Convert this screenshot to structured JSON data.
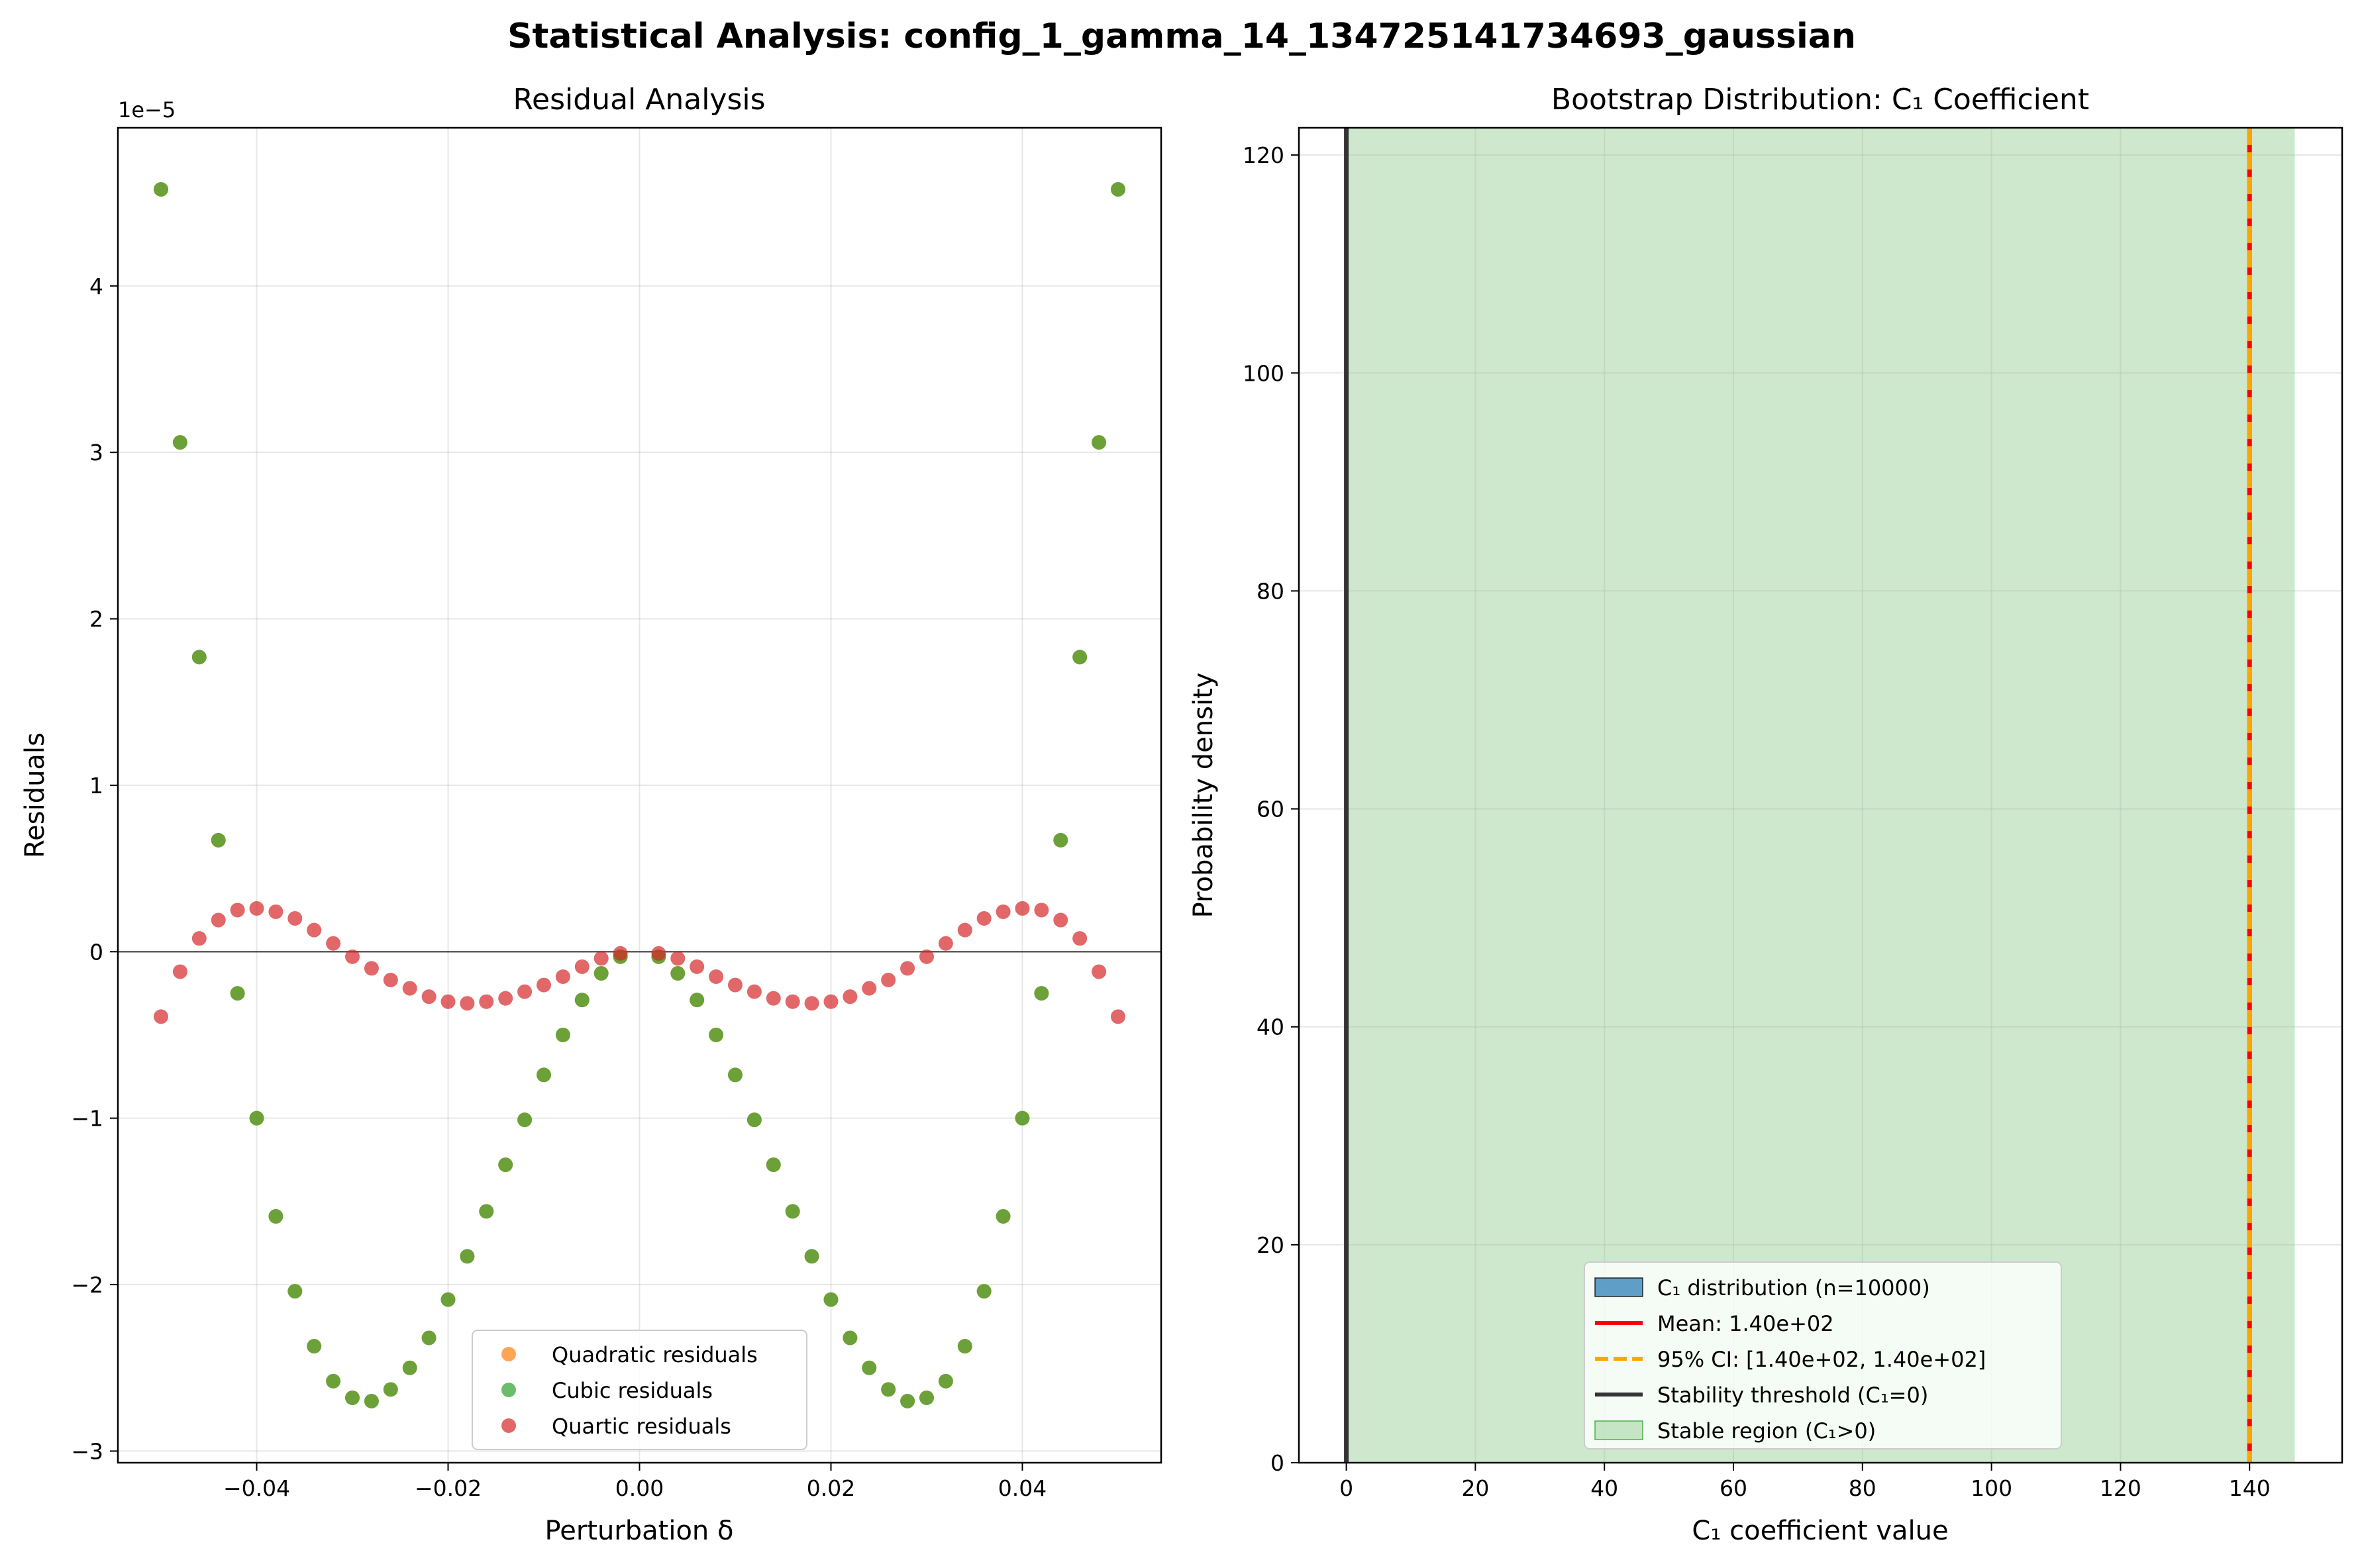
{
  "suptitle": "Statistical Analysis: config_1_gamma_14_134725141734693_gaussian",
  "chart_data": [
    {
      "type": "scatter",
      "title": "Residual Analysis",
      "xlabel": "Perturbation δ",
      "ylabel": "Residuals",
      "y_offset_label": "1e−5",
      "y_scale": 1e-05,
      "xlim": [
        -0.0545,
        0.0545
      ],
      "ylim": [
        -3.07,
        4.95
      ],
      "xticks": [
        -0.04,
        -0.02,
        0.0,
        0.02,
        0.04
      ],
      "xtick_labels": [
        "−0.04",
        "−0.02",
        "0.00",
        "0.02",
        "0.04"
      ],
      "yticks": [
        -3,
        -2,
        -1,
        0,
        1,
        2,
        3,
        4
      ],
      "ytick_labels": [
        "−3",
        "−2",
        "−1",
        "0",
        "1",
        "2",
        "3",
        "4"
      ],
      "grid": true,
      "zero_line": true,
      "legend_position": "lower center",
      "series": [
        {
          "name": "Quadratic residuals",
          "color": "#ff7f0e",
          "x": [
            -0.05,
            -0.048,
            -0.046,
            -0.044,
            -0.042,
            -0.04,
            -0.038,
            -0.036,
            -0.034,
            -0.032,
            -0.03,
            -0.028,
            -0.026,
            -0.024,
            -0.022,
            -0.02,
            -0.018,
            -0.016,
            -0.014,
            -0.012,
            -0.01,
            -0.008,
            -0.006,
            -0.004,
            -0.002,
            0.002,
            0.004,
            0.006,
            0.008,
            0.01,
            0.012,
            0.014,
            0.016,
            0.018,
            0.02,
            0.022,
            0.024,
            0.026,
            0.028,
            0.03,
            0.032,
            0.034,
            0.036,
            0.038,
            0.04,
            0.042,
            0.044,
            0.046,
            0.048,
            0.05
          ],
          "y": [
            4.58,
            3.06,
            1.77,
            0.67,
            -0.25,
            -1.0,
            -1.59,
            -2.04,
            -2.37,
            -2.58,
            -2.68,
            -2.7,
            -2.63,
            -2.5,
            -2.32,
            -2.09,
            -1.83,
            -1.56,
            -1.28,
            -1.01,
            -0.74,
            -0.5,
            -0.29,
            -0.13,
            -0.03,
            -0.03,
            -0.13,
            -0.29,
            -0.5,
            -0.74,
            -1.01,
            -1.28,
            -1.56,
            -1.83,
            -2.09,
            -2.32,
            -2.5,
            -2.63,
            -2.7,
            -2.68,
            -2.58,
            -2.37,
            -2.04,
            -1.59,
            -1.0,
            -0.25,
            0.67,
            1.77,
            3.06,
            4.58
          ]
        },
        {
          "name": "Cubic residuals",
          "color": "#2ca02c",
          "x": [
            -0.05,
            -0.048,
            -0.046,
            -0.044,
            -0.042,
            -0.04,
            -0.038,
            -0.036,
            -0.034,
            -0.032,
            -0.03,
            -0.028,
            -0.026,
            -0.024,
            -0.022,
            -0.02,
            -0.018,
            -0.016,
            -0.014,
            -0.012,
            -0.01,
            -0.008,
            -0.006,
            -0.004,
            -0.002,
            0.002,
            0.004,
            0.006,
            0.008,
            0.01,
            0.012,
            0.014,
            0.016,
            0.018,
            0.02,
            0.022,
            0.024,
            0.026,
            0.028,
            0.03,
            0.032,
            0.034,
            0.036,
            0.038,
            0.04,
            0.042,
            0.044,
            0.046,
            0.048,
            0.05
          ],
          "y": [
            4.58,
            3.06,
            1.77,
            0.67,
            -0.25,
            -1.0,
            -1.59,
            -2.04,
            -2.37,
            -2.58,
            -2.68,
            -2.7,
            -2.63,
            -2.5,
            -2.32,
            -2.09,
            -1.83,
            -1.56,
            -1.28,
            -1.01,
            -0.74,
            -0.5,
            -0.29,
            -0.13,
            -0.03,
            -0.03,
            -0.13,
            -0.29,
            -0.5,
            -0.74,
            -1.01,
            -1.28,
            -1.56,
            -1.83,
            -2.09,
            -2.32,
            -2.5,
            -2.63,
            -2.7,
            -2.68,
            -2.58,
            -2.37,
            -2.04,
            -1.59,
            -1.0,
            -0.25,
            0.67,
            1.77,
            3.06,
            4.58
          ]
        },
        {
          "name": "Quartic residuals",
          "color": "#d62728",
          "x": [
            -0.05,
            -0.048,
            -0.046,
            -0.044,
            -0.042,
            -0.04,
            -0.038,
            -0.036,
            -0.034,
            -0.032,
            -0.03,
            -0.028,
            -0.026,
            -0.024,
            -0.022,
            -0.02,
            -0.018,
            -0.016,
            -0.014,
            -0.012,
            -0.01,
            -0.008,
            -0.006,
            -0.004,
            -0.002,
            0.002,
            0.004,
            0.006,
            0.008,
            0.01,
            0.012,
            0.014,
            0.016,
            0.018,
            0.02,
            0.022,
            0.024,
            0.026,
            0.028,
            0.03,
            0.032,
            0.034,
            0.036,
            0.038,
            0.04,
            0.042,
            0.044,
            0.046,
            0.048,
            0.05
          ],
          "y": [
            -0.39,
            -0.12,
            0.08,
            0.19,
            0.25,
            0.26,
            0.24,
            0.2,
            0.13,
            0.05,
            -0.03,
            -0.1,
            -0.17,
            -0.22,
            -0.27,
            -0.3,
            -0.31,
            -0.3,
            -0.28,
            -0.24,
            -0.2,
            -0.15,
            -0.09,
            -0.04,
            -0.01,
            -0.01,
            -0.04,
            -0.09,
            -0.15,
            -0.2,
            -0.24,
            -0.28,
            -0.3,
            -0.31,
            -0.3,
            -0.27,
            -0.22,
            -0.17,
            -0.1,
            -0.03,
            0.05,
            0.13,
            0.2,
            0.24,
            0.26,
            0.25,
            0.19,
            0.08,
            -0.12,
            -0.39
          ]
        }
      ]
    },
    {
      "type": "bar",
      "title": "Bootstrap Distribution: C₁ Coefficient",
      "xlabel": "C₁ coefficient value",
      "ylabel": "Probability density",
      "xlim": [
        -7.35,
        154.35
      ],
      "ylim": [
        0,
        122.5
      ],
      "xticks": [
        0,
        20,
        40,
        60,
        80,
        100,
        120,
        140
      ],
      "xtick_labels": [
        "0",
        "20",
        "40",
        "60",
        "80",
        "100",
        "120",
        "140"
      ],
      "yticks": [
        0,
        20,
        40,
        60,
        80,
        100,
        120
      ],
      "ytick_labels": [
        "0",
        "20",
        "40",
        "60",
        "80",
        "100",
        "120"
      ],
      "grid": true,
      "legend_position": "lower center",
      "histogram": {
        "name": "C₁ distribution (n=10000)",
        "color": "#1f77b4",
        "center": 140.0,
        "density": 122.5
      },
      "mean_line": {
        "name": "Mean: 1.40e+02",
        "value": 140.0,
        "color": "#ff0000"
      },
      "ci_line": {
        "name": "95% CI: [1.40e+02, 1.40e+02]",
        "low": 140.0,
        "high": 140.0,
        "color": "#ffa500"
      },
      "threshold_line": {
        "name": "Stability threshold (C₁=0)",
        "value": 0,
        "color": "#333333"
      },
      "stable_region": {
        "name": "Stable region (C₁>0)",
        "from": 0,
        "to": 147.0,
        "color": "#2ca02c"
      }
    }
  ]
}
